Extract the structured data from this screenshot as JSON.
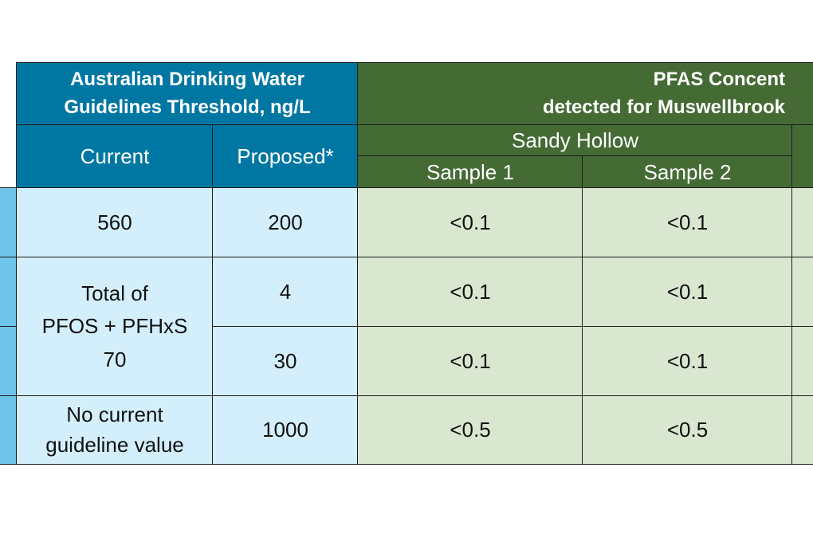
{
  "table": {
    "header": {
      "guidelines_title": "Australian Drinking Water\nGuidelines Threshold, ng/L",
      "pfas_title": "PFAS Concent\ndetected for Muswellbrook",
      "current_label": "Current",
      "proposed_label": "Proposed*",
      "site_label": "Sandy Hollow",
      "sample1_label": "Sample 1",
      "sample2_label": "Sample 2"
    },
    "rows": [
      {
        "current": "560",
        "proposed": "200",
        "sample1": "<0.1",
        "sample2": "<0.1"
      },
      {
        "current": "Total of\nPFOS + PFHxS\n70",
        "proposed": "4",
        "sample1": "<0.1",
        "sample2": "<0.1"
      },
      {
        "proposed": "30",
        "sample1": "<0.1",
        "sample2": "<0.1"
      },
      {
        "current": "No current\nguideline value",
        "proposed": "1000",
        "sample1": "<0.5",
        "sample2": "<0.5"
      }
    ]
  }
}
